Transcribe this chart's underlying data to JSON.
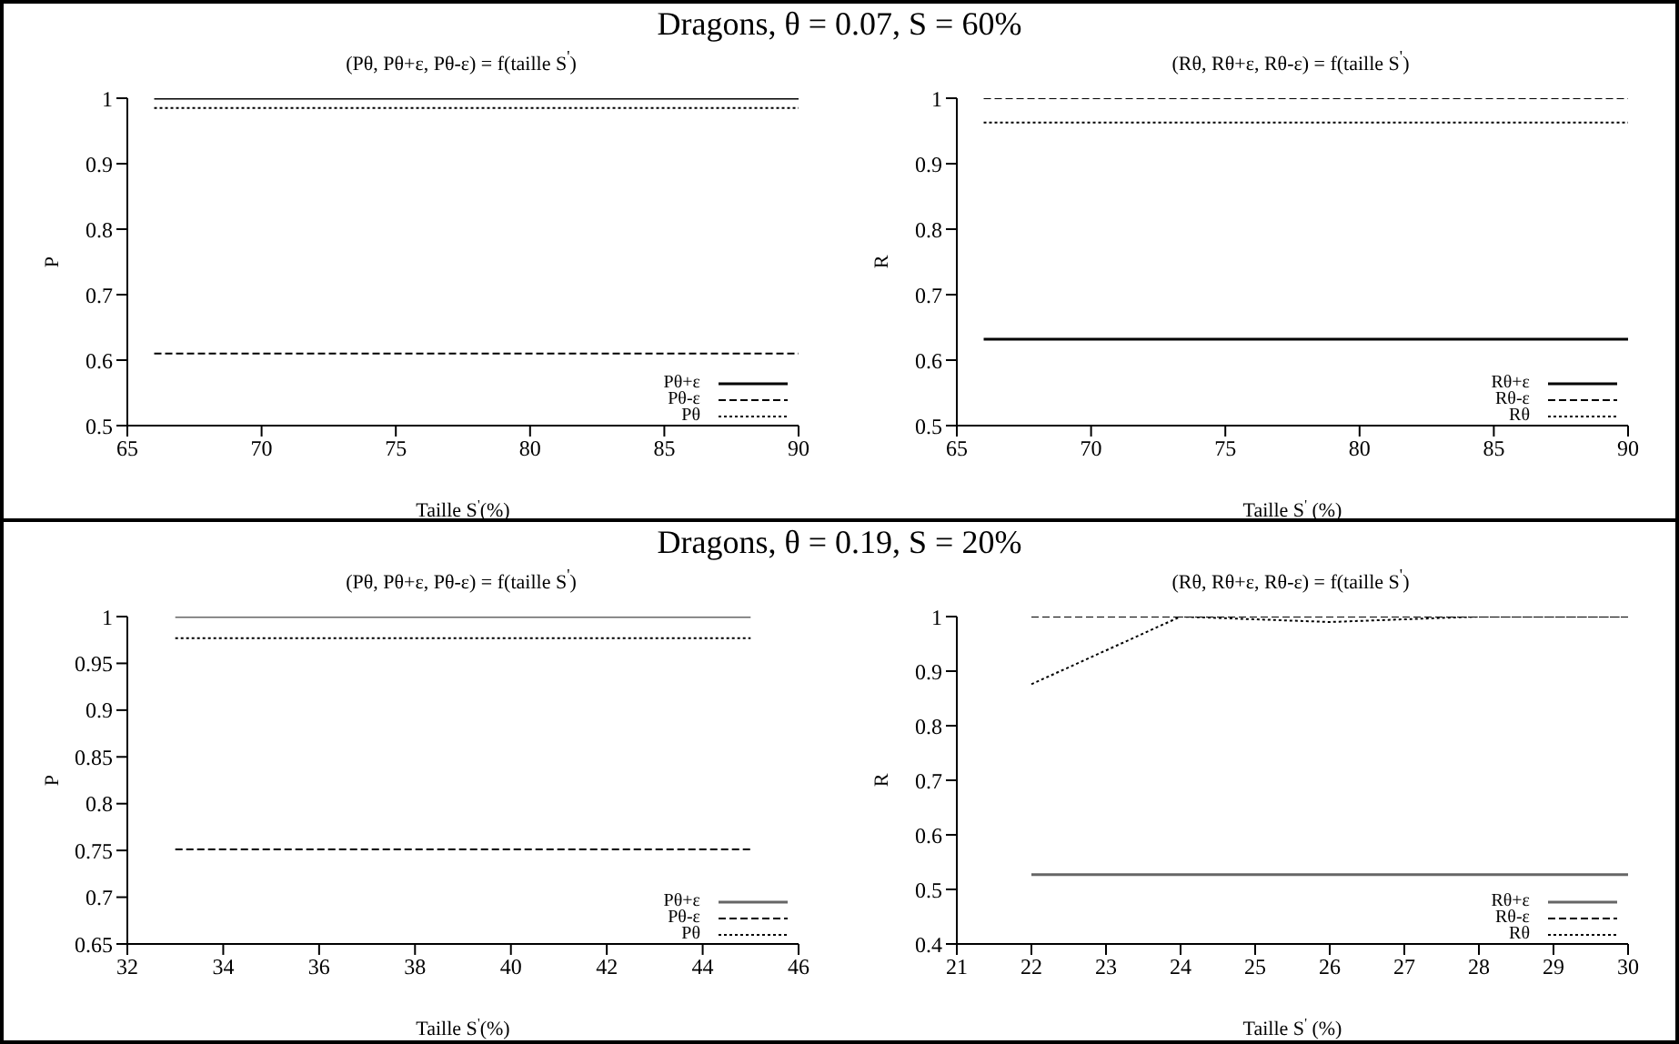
{
  "chart_data": [
    {
      "type": "line",
      "title": "(Pθ, Pθ+ε, Pθ-ε) = f(taille S$^{'}$)",
      "annotations": [
        "Dragons, θ = 0.07, S = 60%"
      ],
      "xlabel": "Taille S$^{'}$(%)",
      "ylabel": "P",
      "x": [
        66,
        90
      ],
      "xlim": [
        65,
        90
      ],
      "xticks": [
        65,
        70,
        75,
        80,
        85,
        90
      ],
      "ylim": [
        0.5,
        1
      ],
      "yticks": [
        0.5,
        0.6,
        0.7,
        0.8,
        0.9,
        1
      ],
      "legend": "bottom right",
      "grid": false,
      "series": [
        {
          "name": "Pθ+ε",
          "color": "#000000",
          "line_style": "solid",
          "values": [
            1,
            1
          ]
        },
        {
          "name": "Pθ-ε",
          "color": "#000000",
          "line_style": "dashed",
          "values": [
            0.61,
            0.61
          ]
        },
        {
          "name": "Pθ",
          "color": "#000000",
          "line_style": "dotted",
          "values": [
            0.985,
            0.985
          ]
        }
      ]
    },
    {
      "type": "line",
      "title": "(Rθ, Rθ+ε, Rθ-ε) = f(taille S$^{'}$)",
      "xlabel": "Taille S$^{'}$ (%)",
      "ylabel": "R",
      "x": [
        66,
        90
      ],
      "xlim": [
        65,
        90
      ],
      "xticks": [
        65,
        70,
        75,
        80,
        85,
        90
      ],
      "ylim": [
        0.5,
        1
      ],
      "yticks": [
        0.5,
        0.6,
        0.7,
        0.8,
        0.9,
        1
      ],
      "legend": "bottom right",
      "grid": false,
      "series": [
        {
          "name": "Rθ+ε",
          "color": "#000000",
          "line_style": "solid",
          "values": [
            0.632,
            0.632
          ]
        },
        {
          "name": "Rθ-ε",
          "color": "#000000",
          "line_style": "dashed",
          "values": [
            1,
            1
          ]
        },
        {
          "name": "Rθ",
          "color": "#000000",
          "line_style": "dotted",
          "values": [
            0.963,
            0.963
          ]
        }
      ]
    },
    {
      "type": "line",
      "title": "(Pθ, Pθ+ε, Pθ-ε) = f(taille S$^{'}$)",
      "annotations": [
        "Dragons, θ = 0.19, S = 20%"
      ],
      "xlabel": "Taille S$^{'}$(%)",
      "ylabel": "P",
      "x": [
        33,
        45
      ],
      "xlim": [
        32,
        46
      ],
      "xticks": [
        32,
        34,
        36,
        38,
        40,
        42,
        44,
        46
      ],
      "ylim": [
        0.65,
        1
      ],
      "yticks": [
        0.65,
        0.7,
        0.75,
        0.8,
        0.85,
        0.9,
        0.95,
        1
      ],
      "legend": "bottom right",
      "grid": false,
      "series": [
        {
          "name": "Pθ+ε",
          "color": "#666666",
          "line_style": "solid",
          "values": [
            1,
            1
          ]
        },
        {
          "name": "Pθ-ε",
          "color": "#000000",
          "line_style": "dashed",
          "values": [
            0.751,
            0.751
          ]
        },
        {
          "name": "Pθ",
          "color": "#000000",
          "line_style": "dotted",
          "values": [
            0.977,
            0.977
          ]
        }
      ]
    },
    {
      "type": "line",
      "title": "(Rθ, Rθ+ε, Rθ-ε) = f(taille S$^{'}$)",
      "xlabel": "Taille S$^{'}$ (%)",
      "ylabel": "R",
      "x": [
        22,
        24,
        25,
        26,
        27,
        28,
        29,
        30
      ],
      "xlim": [
        21,
        30
      ],
      "xticks": [
        21,
        22,
        23,
        24,
        25,
        26,
        27,
        28,
        29,
        30
      ],
      "ylim": [
        0.4,
        1
      ],
      "yticks": [
        0.4,
        0.5,
        0.6,
        0.7,
        0.8,
        0.9,
        1
      ],
      "legend": "bottom right",
      "grid": false,
      "series": [
        {
          "name": "Rθ+ε",
          "color": "#666666",
          "line_style": "solid",
          "values": [
            0.527,
            0.527,
            0.527,
            0.527,
            0.527,
            0.527,
            0.527,
            0.527
          ]
        },
        {
          "name": "Rθ-ε",
          "color": "#000000",
          "line_style": "dashed",
          "values": [
            1,
            1,
            1,
            1,
            1,
            1,
            1,
            1
          ]
        },
        {
          "name": "Rθ",
          "color": "#000000",
          "line_style": "dotted",
          "values": [
            0.876,
            1,
            0.995,
            0.99,
            0.995,
            1,
            1,
            1
          ]
        }
      ]
    }
  ]
}
